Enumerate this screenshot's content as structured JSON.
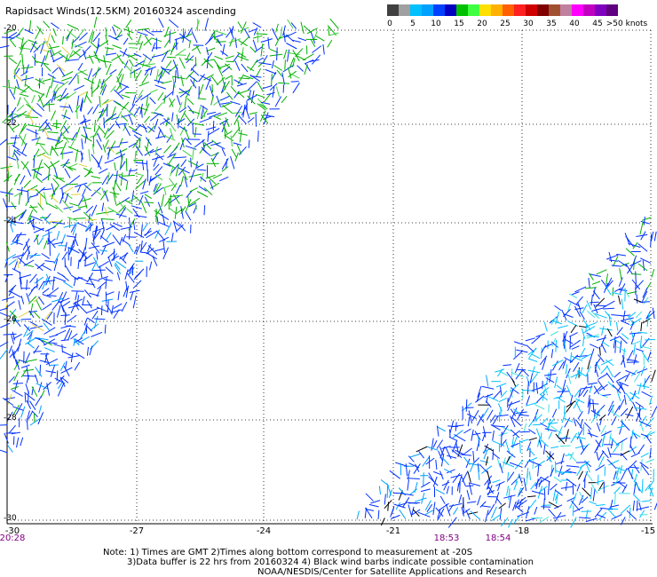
{
  "title": "Rapidsact Winds(12.5KM) 20160324 ascending",
  "legend": {
    "colors": [
      "#404040",
      "#a0a0a0",
      "#00c0ff",
      "#00a0ff",
      "#0040ff",
      "#0000c0",
      "#00c000",
      "#40ff40",
      "#ffe000",
      "#ffb000",
      "#ff6000",
      "#ff2020",
      "#d00000",
      "#800000",
      "#a05030",
      "#c080a0",
      "#ff00ff",
      "#c000c0",
      "#8000c0",
      "#600080"
    ],
    "labels": [
      "0",
      "5",
      "10",
      "15",
      "20",
      "25",
      "30",
      "35",
      "40",
      "45",
      ">50 knots"
    ]
  },
  "axes": {
    "lat_labels": [
      "-20",
      "-22",
      "-24",
      "-26",
      "-28",
      "-30"
    ],
    "lon_labels": [
      "-30",
      "-27",
      "-24",
      "-21",
      "-18",
      "-15"
    ]
  },
  "times": [
    "20:28",
    "18:53",
    "18:54"
  ],
  "notes": [
    "Note: 1) Times are GMT 2)Times along bottom correspond to measurement at -20S",
    "3)Data buffer is 22 hrs from 20160324 4) Black wind barbs indicate possible contamination",
    "NOAA/NESDIS/Center for Satellite Applications and Research"
  ]
}
